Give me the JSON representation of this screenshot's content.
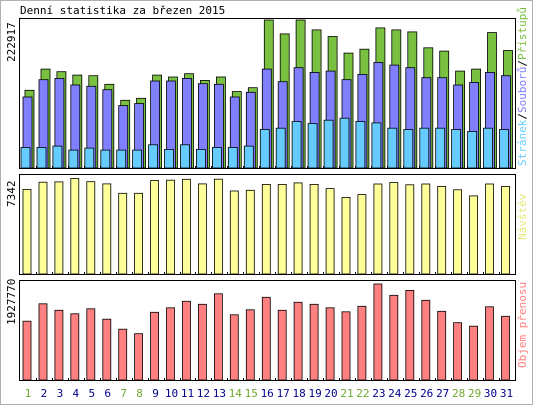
{
  "chart_data": {
    "type": "bar",
    "title": "Denní statistika za březen 2015",
    "days": [
      "1",
      "2",
      "3",
      "4",
      "5",
      "6",
      "7",
      "8",
      "9",
      "10",
      "11",
      "12",
      "13",
      "14",
      "15",
      "16",
      "17",
      "18",
      "19",
      "20",
      "21",
      "22",
      "23",
      "24",
      "25",
      "26",
      "27",
      "28",
      "29",
      "30",
      "31"
    ],
    "weekend_days": [
      "1",
      "7",
      "8",
      "14",
      "15",
      "21",
      "22",
      "28",
      "29"
    ],
    "panels": [
      {
        "id": "hits",
        "ymax_label": "222917",
        "ymax": 222917,
        "legend": [
          "Přístupů",
          "Souborů",
          "Stránek"
        ],
        "series": [
          {
            "name": "Přístupů",
            "color": "#7ac142",
            "values": [
              117000,
              149000,
              145000,
              140000,
              139000,
              126000,
              102000,
              105000,
              140000,
              137000,
              142000,
              132000,
              137000,
              115000,
              121000,
              222917,
              202000,
              222917,
              208000,
              198000,
              173000,
              179000,
              211000,
              208000,
              205000,
              181000,
              176000,
              146000,
              149000,
              204000,
              177000
            ]
          },
          {
            "name": "Souborů",
            "color": "#8080ff",
            "values": [
              107000,
              133000,
              135000,
              125000,
              123000,
              118000,
              94000,
              97000,
              131000,
              131000,
              135000,
              127000,
              126000,
              107000,
              114000,
              149000,
              130000,
              151000,
              144000,
              146000,
              133000,
              141000,
              159000,
              155000,
              151000,
              136000,
              136000,
              125000,
              129000,
              144000,
              139000
            ]
          },
          {
            "name": "Stránek",
            "color": "#66ccff",
            "values": [
              31000,
              31000,
              33000,
              27000,
              30000,
              27000,
              27000,
              27000,
              35000,
              28000,
              35000,
              28000,
              31000,
              31000,
              33000,
              58000,
              60000,
              70000,
              67000,
              72000,
              75000,
              70000,
              68000,
              60000,
              58000,
              60000,
              60000,
              58000,
              55000,
              60000,
              58000
            ]
          }
        ]
      },
      {
        "id": "visits",
        "ymax_label": "7342",
        "ymax": 7342,
        "legend": [
          "Návštěv"
        ],
        "series": [
          {
            "name": "Návštěv",
            "color": "#ffff99",
            "values": [
              6470,
              7020,
              7040,
              7300,
              7060,
              6890,
              6170,
              6170,
              7150,
              7170,
              7240,
              6890,
              7250,
              6350,
              6400,
              6850,
              6850,
              6970,
              6850,
              6530,
              5860,
              6070,
              6880,
              6990,
              6820,
              6880,
              6700,
              6440,
              5970,
              6880,
              6700
            ]
          }
        ]
      },
      {
        "id": "volume",
        "ymax_label": "1927770",
        "ymax": 1927770,
        "legend": [
          "Objem přenosu"
        ],
        "series": [
          {
            "name": "Objem přenosu",
            "color": "#ff8080",
            "values": [
              1180000,
              1530000,
              1400000,
              1330000,
              1430000,
              1220000,
              1020000,
              930000,
              1360000,
              1450000,
              1580000,
              1520000,
              1730000,
              1310000,
              1410000,
              1660000,
              1400000,
              1560000,
              1520000,
              1450000,
              1370000,
              1480000,
              1927770,
              1700000,
              1800000,
              1600000,
              1380000,
              1150000,
              1080000,
              1470000,
              1280000
            ]
          }
        ]
      }
    ]
  },
  "colors": {
    "weekday_label": "#00008b",
    "weekend_label": "#6fa82e",
    "hits_label": "#7ac142",
    "files_label": "#8080ff",
    "pages_label": "#66ccff",
    "visits_label": "#e6e67a",
    "volume_label": "#ff8080",
    "separator": "#000000"
  }
}
